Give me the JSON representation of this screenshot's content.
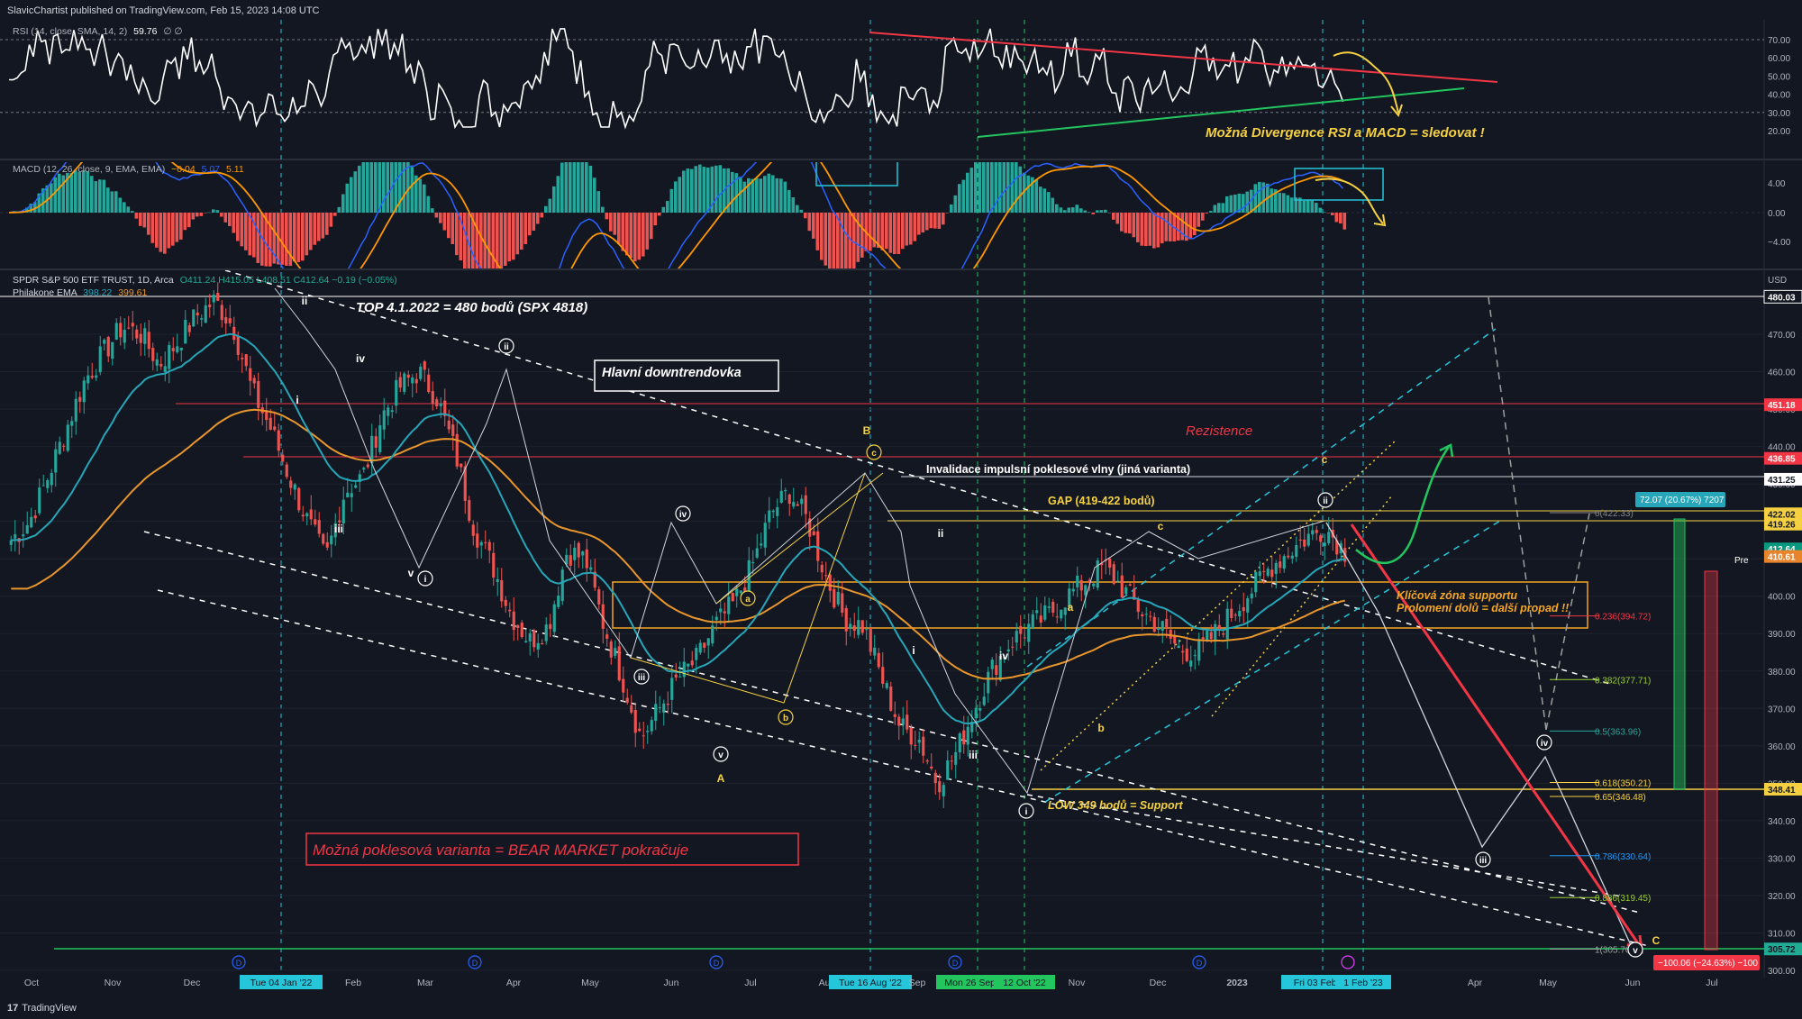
{
  "header": {
    "publisher": "SlavicChartist published on TradingView.com, Feb 15, 2023 14:08 UTC",
    "footer_logo": "TradingView"
  },
  "panes": {
    "rsi": {
      "legend": "RSI (14, close, SMA, 14, 2)",
      "legend_value": "59.76",
      "legend_suffix": "∅ ∅",
      "scale_labels": [
        "70.00",
        "60.00",
        "50.00",
        "40.00",
        "30.00",
        "20.00"
      ],
      "note": "Možná Divergence RSI a MACD = sledovat !"
    },
    "macd": {
      "legend": "MACD (12, 26, close, 9, EMA, EMA)",
      "legend_values": [
        "−0.04",
        "5.07",
        "5.11"
      ],
      "scale_labels": [
        "4.00",
        "0.00",
        "−4.00"
      ]
    },
    "main": {
      "legend_line1_prefix": "SPDR S&P 500 ETF TRUST, 1D, Arca",
      "legend_ohlc": "O411.24 H415.05 L408.51 C412.64 −0.19 (−0.05%)",
      "legend_line2_prefix": "Philakone EMA",
      "legend_ema1": "398.22",
      "legend_ema2": "399.61",
      "currency": "USD"
    }
  },
  "chart_data": {
    "type": "line",
    "title": "",
    "x_axis_labels": [
      "Oct",
      "Nov",
      "Dec",
      "Tue 04 Jan '22",
      "Feb",
      "Mar",
      "Apr",
      "May",
      "Jun",
      "Jul",
      "Aug",
      "Tue 16 Aug '22",
      "Sep",
      "Mon 26 Sep '22",
      "12 Oct '22",
      "Nov",
      "Dec",
      "2023",
      "Fri 03 Feb '23",
      "1 Feb '23",
      "Apr",
      "May",
      "Jun",
      "Jul"
    ],
    "y_axis_ticks": [
      470,
      460,
      450,
      440,
      430,
      420,
      410,
      400,
      390,
      380,
      370,
      360,
      350,
      340,
      330,
      320,
      310,
      300
    ],
    "ylim": [
      300,
      485
    ],
    "price_series": {
      "name": "SPY",
      "points": [
        [
          0,
          415
        ],
        [
          0.5,
          420
        ],
        [
          1,
          432
        ],
        [
          2,
          445
        ],
        [
          3,
          458
        ],
        [
          4,
          465
        ],
        [
          5,
          472
        ],
        [
          6,
          470
        ],
        [
          7,
          462
        ],
        [
          8,
          468
        ],
        [
          9,
          475
        ],
        [
          10,
          479
        ],
        [
          11,
          472
        ],
        [
          12,
          455
        ],
        [
          13,
          445
        ],
        [
          14,
          432
        ],
        [
          15,
          420
        ],
        [
          16,
          410
        ],
        [
          17,
          428
        ],
        [
          18,
          432
        ],
        [
          19,
          448
        ],
        [
          20,
          456
        ],
        [
          21,
          460
        ],
        [
          22,
          453
        ],
        [
          23,
          438
        ],
        [
          24,
          418
        ],
        [
          25,
          408
        ],
        [
          26,
          395
        ],
        [
          27,
          388
        ],
        [
          28,
          392
        ],
        [
          29,
          412
        ],
        [
          30,
          410
        ],
        [
          31,
          392
        ],
        [
          32,
          378
        ],
        [
          33,
          362
        ],
        [
          34,
          370
        ],
        [
          35,
          378
        ],
        [
          36,
          383
        ],
        [
          37,
          392
        ],
        [
          38,
          398
        ],
        [
          39,
          408
        ],
        [
          40,
          422
        ],
        [
          41,
          428
        ],
        [
          42,
          420
        ],
        [
          43,
          405
        ],
        [
          44,
          394
        ],
        [
          45,
          392
        ],
        [
          46,
          378
        ],
        [
          47,
          365
        ],
        [
          48,
          362
        ],
        [
          49,
          350
        ],
        [
          50,
          358
        ],
        [
          51,
          370
        ],
        [
          52,
          381
        ],
        [
          53,
          388
        ],
        [
          54,
          392
        ],
        [
          55,
          395
        ],
        [
          56,
          400
        ],
        [
          57,
          404
        ],
        [
          58,
          408
        ],
        [
          59,
          402
        ],
        [
          60,
          396
        ],
        [
          61,
          392
        ],
        [
          62,
          386
        ],
        [
          63,
          385
        ],
        [
          64,
          390
        ],
        [
          65,
          396
        ],
        [
          66,
          402
        ],
        [
          67,
          408
        ],
        [
          68,
          412
        ],
        [
          69,
          416
        ],
        [
          70,
          418
        ],
        [
          71,
          412
        ]
      ]
    },
    "ema_series": [
      {
        "name": "",
        "values_desc": "EMA fast"
      },
      {
        "name": "",
        "values_desc": "EMA slow"
      }
    ],
    "price_labels": [
      {
        "value": "480.03",
        "color": "#ffffff",
        "bg": "#131722"
      },
      {
        "value": "451.18",
        "color": "#ffffff",
        "bg": "#f23645"
      },
      {
        "value": "436.85",
        "color": "#ffffff",
        "bg": "#f23645"
      },
      {
        "value": "431.25",
        "color": "#131722",
        "bg": "#ffffff"
      },
      {
        "value": "422.02",
        "color": "#131722",
        "bg": "#f5d142"
      },
      {
        "value": "419.26",
        "color": "#131722",
        "bg": "#f5d142"
      },
      {
        "value": "412.64",
        "color": "#ffffff",
        "bg": "#089981"
      },
      {
        "value": "410.61",
        "color": "#ffffff",
        "bg": "#e8842c"
      },
      {
        "value": "348.41",
        "color": "#131722",
        "bg": "#f5d142"
      },
      {
        "value": "305.72",
        "color": "#131722",
        "bg": "#22ab94"
      }
    ],
    "pre_label": "Pre",
    "fib_levels": [
      {
        "label": "0(422.33)",
        "value": 422.33,
        "color": "#888888"
      },
      {
        "label": "0.236(394.72)",
        "value": 394.72,
        "color": "#f23645"
      },
      {
        "label": "0.382(377.71)",
        "value": 377.71,
        "color": "#9acd32"
      },
      {
        "label": "0.5(363.96)",
        "value": 363.96,
        "color": "#26a69a"
      },
      {
        "label": "0.618(350.21)",
        "value": 350.21,
        "color": "#f5d142"
      },
      {
        "label": "0.65(346.48)",
        "value": 346.48,
        "color": "#f5d142"
      },
      {
        "label": "0.786(330.64)",
        "value": 330.64,
        "color": "#2196f3"
      },
      {
        "label": "0.886(319.45)",
        "value": 319.45,
        "color": "#9acd32"
      },
      {
        "label": "1(305.70)",
        "value": 305.7,
        "color": "#9e9e9e"
      }
    ],
    "annotations": {
      "top": "TOP 4.1.2022 = 480 bodů (SPX 4818)",
      "downtrend": "Hlavní downtrendovka",
      "resistance": "Rezistence",
      "invalidation": "Invalidace impulsní poklesové vlny (jiná varianta)",
      "gap": "GAP (419-422 bodů)",
      "support_zone_1": "Klíčová zóna supportu",
      "support_zone_2": "Prolomení dolů = další propad !!",
      "low": "LOW 349 bodů = Support",
      "bear": "Možná poklesová varianta = BEAR MARKET pokračuje",
      "measure_up": "72.07 (20.67%) 7207",
      "measure_down": "−100.06 (−24.63%) −100"
    },
    "wave_labels": [
      "ii",
      "iv",
      "i",
      "iii",
      "v",
      "i",
      "ii",
      "iii",
      "iv",
      "v",
      "A",
      "a",
      "b",
      "B",
      "c",
      "i",
      "ii",
      "iii",
      "iv",
      "i",
      "a",
      "b",
      "c",
      "ii",
      "iii",
      "iv",
      "v",
      "C",
      "c"
    ]
  }
}
